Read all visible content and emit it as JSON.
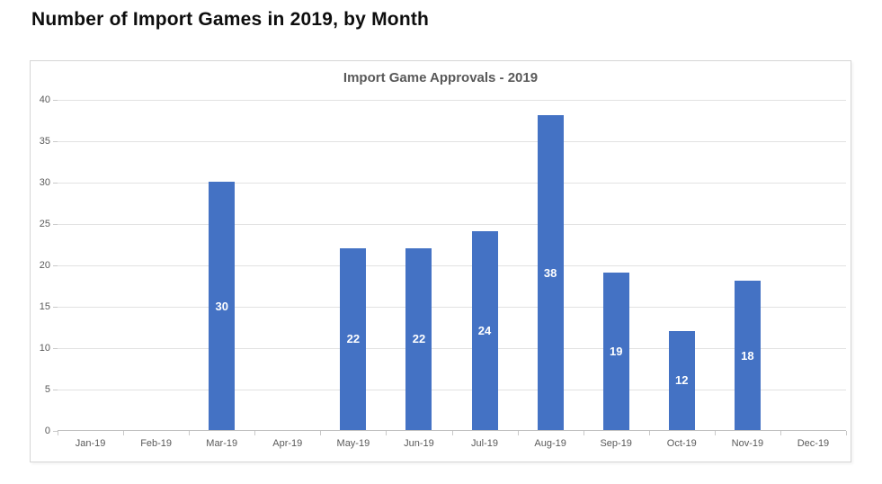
{
  "page": {
    "title": "Number of Import Games in 2019, by Month"
  },
  "chart_data": {
    "type": "bar",
    "title": "Import Game Approvals - 2019",
    "categories": [
      "Jan-19",
      "Feb-19",
      "Mar-19",
      "Apr-19",
      "May-19",
      "Jun-19",
      "Jul-19",
      "Aug-19",
      "Sep-19",
      "Oct-19",
      "Nov-19",
      "Dec-19"
    ],
    "values": [
      0,
      0,
      30,
      0,
      22,
      22,
      24,
      38,
      19,
      12,
      18,
      0
    ],
    "xlabel": "",
    "ylabel": "",
    "ylim": [
      0,
      40
    ],
    "ytick_step": 5,
    "grid": "horizontal",
    "legend": "none",
    "data_labels": "centered-inside-bar",
    "colors": {
      "bar": "#4472c4",
      "bar_label": "#ffffff",
      "axis_text": "#595959",
      "title_text": "#595959",
      "gridline": "#e2e2e2"
    }
  }
}
